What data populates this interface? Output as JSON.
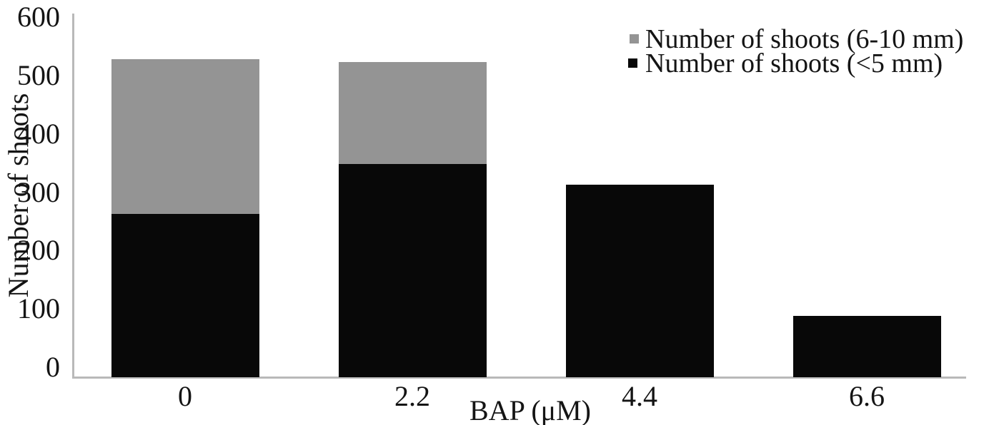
{
  "chart_data": {
    "type": "bar",
    "stacked": true,
    "title": "",
    "xlabel": "BAP (μM)",
    "ylabel": "Number of shoots",
    "categories": [
      "0",
      "2.2",
      "4.4",
      "6.6"
    ],
    "series": [
      {
        "name": "Number of shoots (<5 mm)",
        "color": "#080808",
        "values": [
          280,
          365,
          330,
          105
        ]
      },
      {
        "name": "Number of shoots (6-10 mm)",
        "color": "#949494",
        "values": [
          265,
          175,
          0,
          0
        ]
      }
    ],
    "stack_totals": [
      545,
      540,
      330,
      105
    ],
    "ylim": [
      0,
      600
    ],
    "yticks": [
      0,
      100,
      200,
      300,
      400,
      500,
      600
    ],
    "grid": false,
    "legend_position": "top-right",
    "axis_line_color": "#b9b9b9",
    "text_color": "#141414",
    "background_color": "#ffffff"
  }
}
